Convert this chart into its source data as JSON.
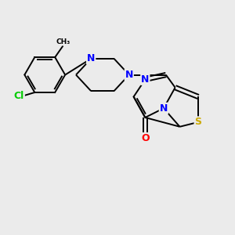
{
  "background_color": "#ebebeb",
  "bond_color": "#000000",
  "atom_colors": {
    "N": "#0000ff",
    "O": "#ff0000",
    "S": "#ccaa00",
    "Cl": "#00cc00",
    "C": "#000000"
  },
  "figsize": [
    3.0,
    3.0
  ],
  "dpi": 100
}
